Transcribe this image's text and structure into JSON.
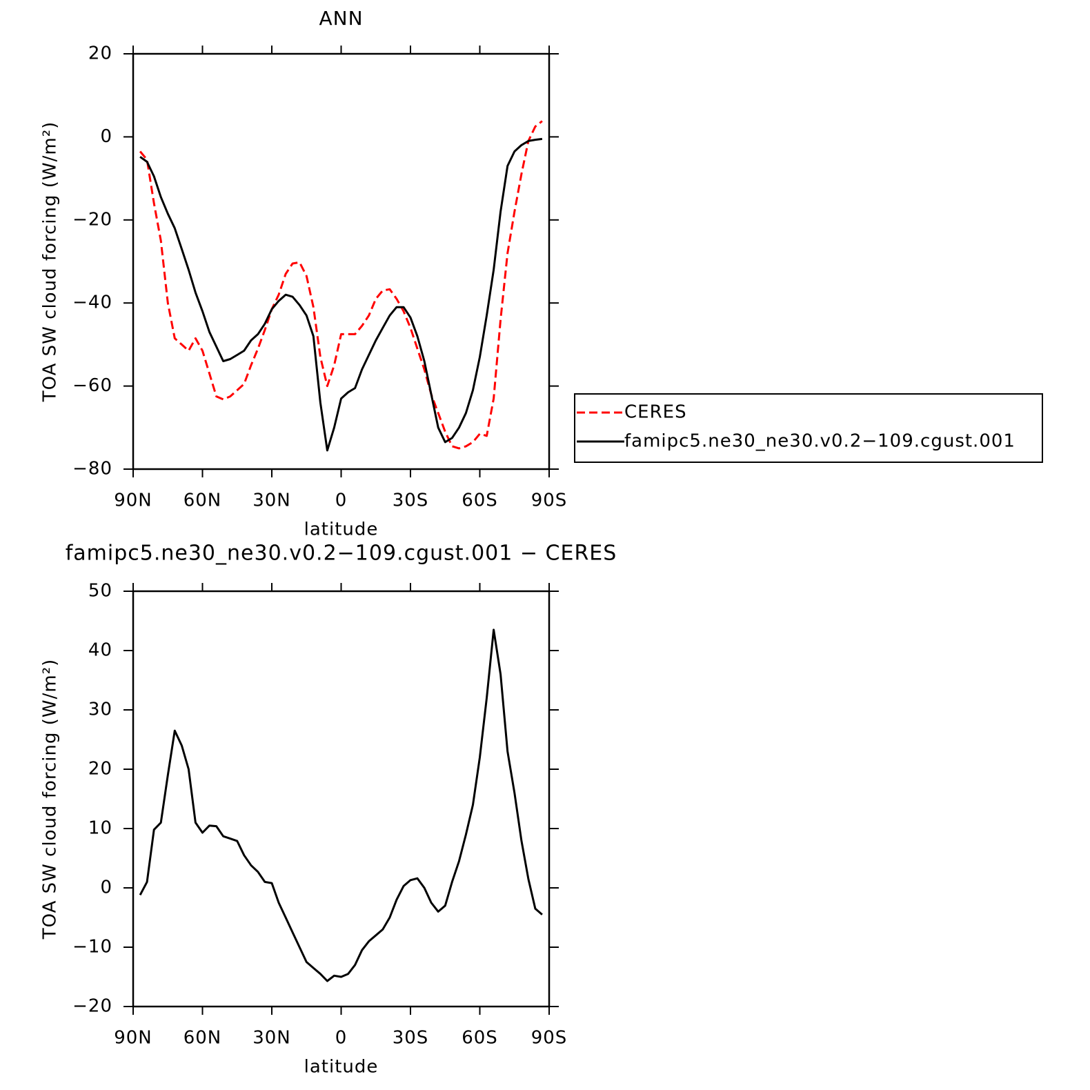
{
  "chart_data": [
    {
      "type": "line",
      "title": "ANN",
      "xlabel": "latitude",
      "ylabel": "TOA SW cloud forcing (W/m²)",
      "x": [
        87,
        84,
        81,
        78,
        75,
        72,
        69,
        66,
        63,
        60,
        57,
        54,
        51,
        48,
        45,
        42,
        39,
        36,
        33,
        30,
        27,
        24,
        21,
        18,
        15,
        12,
        9,
        6,
        3,
        0,
        -3,
        -6,
        -9,
        -12,
        -15,
        -18,
        -21,
        -24,
        -27,
        -30,
        -33,
        -36,
        -39,
        -42,
        -45,
        -48,
        -51,
        -54,
        -57,
        -60,
        -63,
        -66,
        -69,
        -72,
        -75,
        -78,
        -81,
        -84,
        -87
      ],
      "series": [
        {
          "name": "CERES",
          "color": "#ff0000",
          "line_style": "dashed",
          "values": [
            -3.5,
            -5.5,
            -16,
            -25,
            -40,
            -48.5,
            -50,
            -51.5,
            -48.5,
            -51.5,
            -57,
            -62.5,
            -63.2,
            -62.5,
            -61,
            -59.5,
            -55,
            -51,
            -46.5,
            -41.5,
            -38,
            -33,
            -30.5,
            -30.2,
            -33.5,
            -41,
            -53,
            -60,
            -55,
            -47.5,
            -47.5,
            -47.5,
            -45.5,
            -43,
            -39,
            -37,
            -36.7,
            -39,
            -42,
            -46,
            -51,
            -56,
            -62,
            -66.5,
            -71,
            -74.5,
            -75,
            -74.5,
            -73.5,
            -71.5,
            -72,
            -63,
            -44,
            -28,
            -18,
            -9,
            -1,
            2.5,
            3.8
          ]
        },
        {
          "name": "famipc5.ne30_ne30.v0.2−109.cgust.001",
          "color": "#000000",
          "line_style": "solid",
          "values": [
            -4.8,
            -6,
            -9.5,
            -14.5,
            -18.5,
            -22,
            -27,
            -32,
            -37.5,
            -42,
            -47,
            -50.5,
            -54,
            -53.5,
            -52.5,
            -51.5,
            -49,
            -47.5,
            -45,
            -41.5,
            -39.5,
            -38,
            -38.5,
            -40.5,
            -43,
            -48,
            -64,
            -75.5,
            -70,
            -63,
            -61.5,
            -60.5,
            -56,
            -52.5,
            -49,
            -46,
            -43,
            -41,
            -41,
            -43.5,
            -48,
            -54,
            -62,
            -70,
            -73.5,
            -72.5,
            -70,
            -66.5,
            -61,
            -53,
            -43,
            -32,
            -18,
            -7,
            -3.5,
            -2,
            -1,
            -0.7,
            -0.5
          ]
        }
      ],
      "xlim": [
        90,
        -90
      ],
      "xticks": [
        {
          "value": 90,
          "label": "90N"
        },
        {
          "value": 60,
          "label": "60N"
        },
        {
          "value": 30,
          "label": "30N"
        },
        0,
        {
          "value": -30,
          "label": "30S"
        },
        {
          "value": -60,
          "label": "60S"
        },
        {
          "value": -90,
          "label": "90S"
        }
      ],
      "ylim": [
        -80,
        20
      ],
      "yticks": [
        {
          "value": -80,
          "label": "−80"
        },
        {
          "value": -60,
          "label": "−60"
        },
        {
          "value": -40,
          "label": "−40"
        },
        {
          "value": -20,
          "label": "−20"
        },
        0,
        20
      ],
      "legend": "right"
    },
    {
      "type": "line",
      "title": "famipc5.ne30_ne30.v0.2−109.cgust.001 − CERES",
      "xlabel": "latitude",
      "ylabel": "TOA SW cloud forcing (W/m²)",
      "x": [
        87,
        84,
        81,
        78,
        75,
        72,
        69,
        66,
        63,
        60,
        57,
        54,
        51,
        48,
        45,
        42,
        39,
        36,
        33,
        30,
        27,
        24,
        21,
        18,
        15,
        12,
        9,
        6,
        3,
        0,
        -3,
        -6,
        -9,
        -12,
        -15,
        -18,
        -21,
        -24,
        -27,
        -30,
        -33,
        -36,
        -39,
        -42,
        -45,
        -48,
        -51,
        -54,
        -57,
        -60,
        -63,
        -66,
        -69,
        -72,
        -75,
        -78,
        -81,
        -84,
        -87
      ],
      "color": "#000000",
      "line_style": "solid",
      "values": [
        -1.2,
        1,
        9.8,
        11,
        19,
        26.5,
        24,
        20,
        11,
        9.3,
        10.5,
        10.4,
        8.7,
        8.3,
        7.9,
        5.5,
        3.8,
        2.7,
        1,
        0.8,
        -2.5,
        -5,
        -7.5,
        -10,
        -12.5,
        -13.5,
        -14.5,
        -15.7,
        -14.8,
        -15,
        -14.5,
        -13,
        -10.5,
        -9,
        -8,
        -7,
        -5,
        -2,
        0.3,
        1.3,
        1.6,
        0,
        -2.5,
        -4,
        -3,
        1,
        4.5,
        9,
        14,
        22,
        32,
        43.5,
        36,
        23,
        16,
        8,
        1.5,
        -3.5,
        -4.5
      ],
      "xlim": [
        90,
        -90
      ],
      "xticks": [
        {
          "value": 90,
          "label": "90N"
        },
        {
          "value": 60,
          "label": "60N"
        },
        {
          "value": 30,
          "label": "30N"
        },
        0,
        {
          "value": -30,
          "label": "30S"
        },
        {
          "value": -60,
          "label": "60S"
        },
        {
          "value": -90,
          "label": "90S"
        }
      ],
      "ylim": [
        -20,
        50
      ],
      "yticks": [
        {
          "value": -20,
          "label": "−20"
        },
        {
          "value": -10,
          "label": "−10"
        },
        0,
        10,
        20,
        30,
        40,
        50
      ]
    }
  ]
}
